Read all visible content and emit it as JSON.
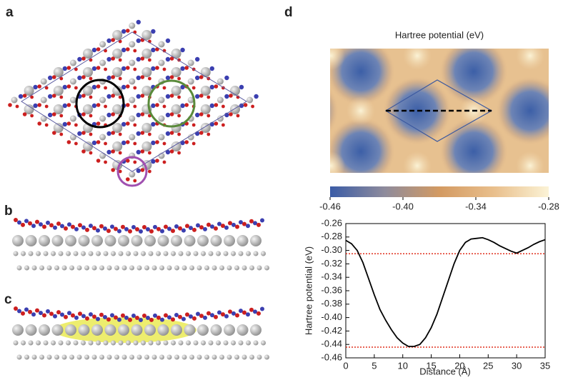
{
  "panel_labels": [
    "a",
    "b",
    "c",
    "d"
  ],
  "chart_data": [
    {
      "type": "heatmap",
      "title": "Hartree potential (eV)",
      "colorbar": {
        "lim": [
          -0.46,
          -0.28
        ],
        "ticks": [
          -0.46,
          {
            "value": -0.4,
            "label": "-0.40"
          },
          -0.34,
          -0.28
        ],
        "colors": [
          "#3b5ca6",
          "#8e8b9c",
          "#d39a62",
          "#e9bf8c",
          "#fbf3d6"
        ]
      }
    },
    {
      "type": "line",
      "xlabel": "Distance (Å)",
      "ylabel": "Hartree potential (eV)",
      "x": [
        0,
        1,
        2,
        3,
        4,
        5,
        6,
        7,
        8,
        9,
        10,
        11,
        12,
        13,
        14,
        15,
        16,
        17,
        18,
        19,
        20,
        21,
        22,
        23,
        24,
        25,
        26,
        27,
        28,
        29,
        30,
        31,
        32,
        33,
        34,
        35
      ],
      "values": [
        -0.285,
        -0.29,
        -0.3,
        -0.318,
        -0.342,
        -0.366,
        -0.388,
        -0.404,
        -0.418,
        -0.43,
        -0.438,
        -0.443,
        -0.443,
        -0.44,
        -0.43,
        -0.415,
        -0.395,
        -0.37,
        -0.345,
        -0.32,
        -0.3,
        -0.288,
        -0.283,
        -0.282,
        -0.281,
        -0.284,
        -0.288,
        -0.293,
        -0.297,
        -0.301,
        -0.304,
        -0.3,
        -0.296,
        -0.291,
        -0.287,
        -0.284
      ],
      "color": "#000000",
      "reference_lines": [
        -0.305,
        -0.444
      ],
      "reference_color": "#e0301e",
      "xlim": [
        0,
        35
      ],
      "xticks": [
        0,
        5,
        10,
        15,
        20,
        25,
        30,
        35
      ],
      "ylim": [
        -0.46,
        -0.26
      ],
      "yticks": [
        -0.26,
        -0.28,
        {
          "value": -0.3,
          "label": "-0.30"
        },
        -0.32,
        -0.34,
        -0.36,
        -0.38,
        {
          "value": -0.4,
          "label": "-0.40"
        },
        -0.42,
        -0.44,
        -0.46
      ]
    }
  ]
}
